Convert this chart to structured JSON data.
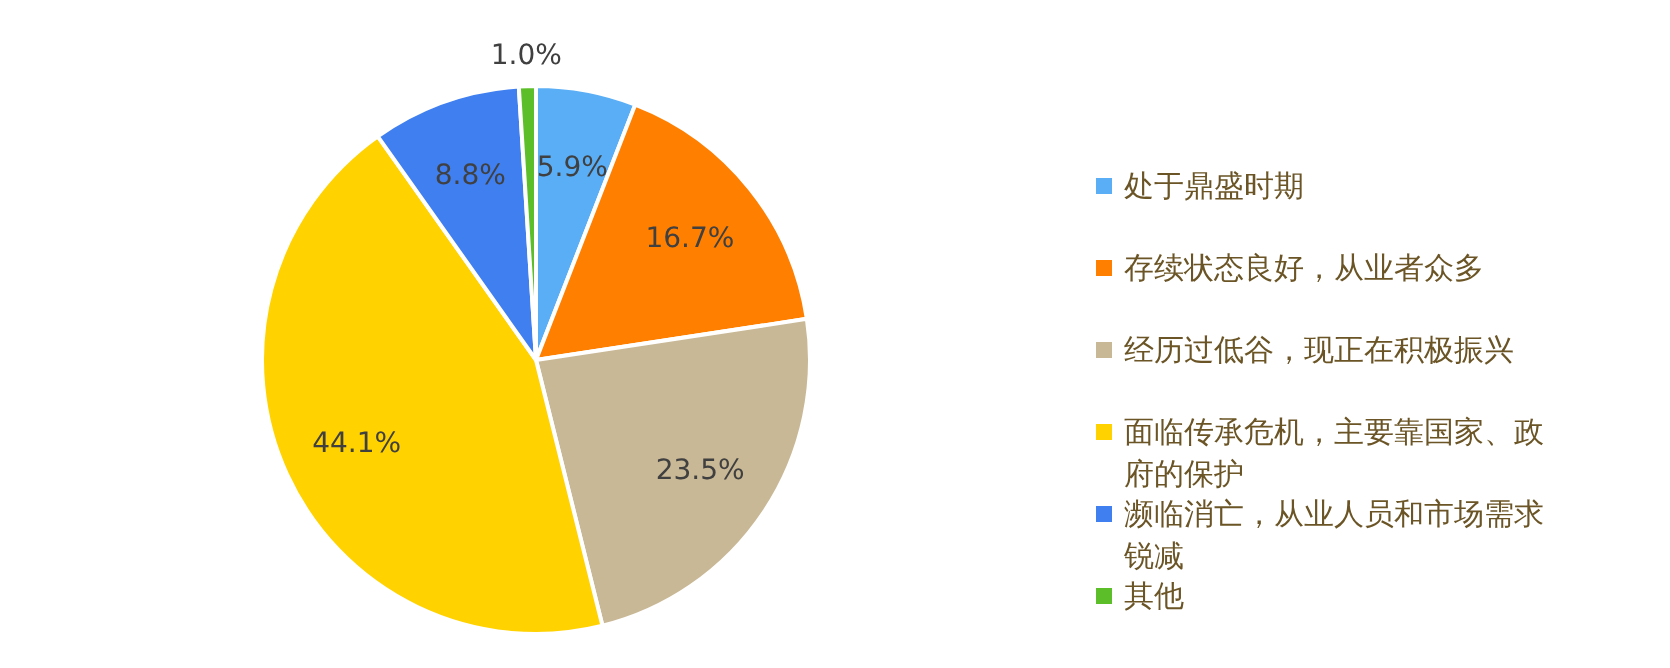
{
  "chart_data": {
    "type": "pie",
    "categories": [
      "处于鼎盛时期",
      "存续状态良好，从业者众多",
      "经历过低谷，现正在积极振兴",
      "面临传承危机，主要靠国家、政府的保护",
      "濒临消亡，从业人员和市场需求锐减",
      "其他"
    ],
    "values": [
      5.9,
      16.7,
      23.5,
      44.1,
      8.8,
      1.0
    ],
    "value_labels": [
      "5.9%",
      "16.7%",
      "23.5%",
      "44.1%",
      "8.8%",
      "1.0%"
    ],
    "colors": [
      "#5aaef5",
      "#ff7f00",
      "#c9b896",
      "#ffd200",
      "#3f7ff0",
      "#5cbf2a"
    ],
    "legend": "right"
  }
}
